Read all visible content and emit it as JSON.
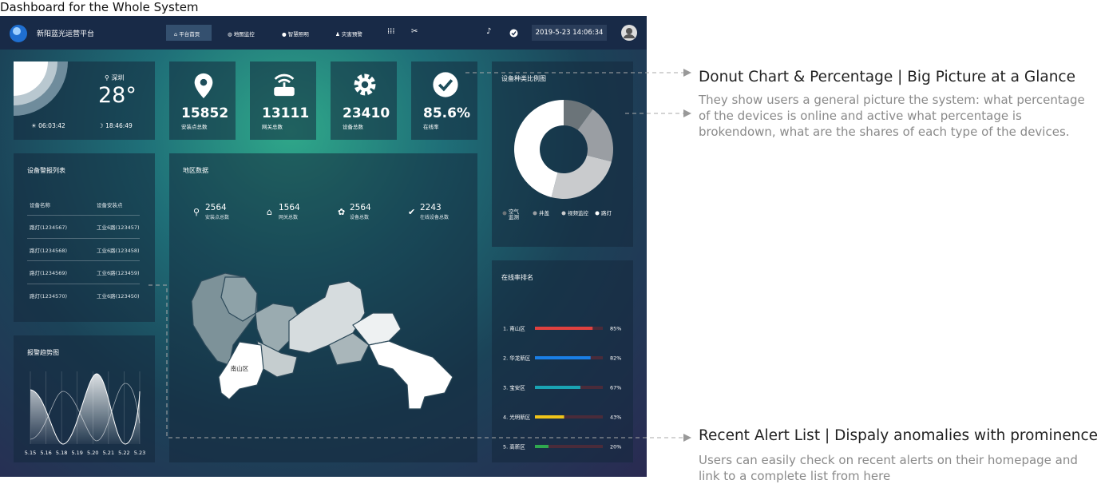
{
  "title": "Dashboard for the Whole System",
  "header": {
    "brand": "新阳蓝光运营平台",
    "nav": [
      "平台首页",
      "地图监控",
      "智慧照明",
      "灾害预警"
    ],
    "datetime": "2019-5-23 14:06:34"
  },
  "weather": {
    "city": "深圳",
    "temperature": "28°",
    "sunrise": "06:03:42",
    "sunset": "18:46:49"
  },
  "stats": [
    {
      "value": "15852",
      "label": "安装点总数"
    },
    {
      "value": "13111",
      "label": "网关总数"
    },
    {
      "value": "23410",
      "label": "设备总数"
    },
    {
      "value": "85.6%",
      "label": "在线率"
    }
  ],
  "alerts": {
    "title": "设备警报列表",
    "columns": [
      "设备名称",
      "设备安装点"
    ],
    "rows": [
      [
        "路灯(1234567)",
        "工业6路(123457)"
      ],
      [
        "路灯(1234568)",
        "工业6路(123458)"
      ],
      [
        "路灯(1234569)",
        "工业6路(123459)"
      ],
      [
        "路灯(1234570)",
        "工业6路(123450)"
      ]
    ]
  },
  "trend": {
    "title": "报警趋势图",
    "categories": [
      "5.15",
      "5.16",
      "5.18",
      "5.19",
      "5.20",
      "5.21",
      "5.22",
      "5.23"
    ]
  },
  "region": {
    "title": "地区数据",
    "stats": [
      {
        "value": "2564",
        "label": "安装点总数"
      },
      {
        "value": "1564",
        "label": "网关总数"
      },
      {
        "value": "2564",
        "label": "设备总数"
      },
      {
        "value": "2243",
        "label": "在线设备总数"
      }
    ],
    "map_label": "南山区"
  },
  "donut": {
    "title": "设备种类比例图",
    "categories": [
      "空气监测",
      "井盖",
      "视频监控",
      "路灯"
    ],
    "values": [
      10,
      19,
      25,
      46
    ],
    "colors": [
      "#6b7479",
      "#9a9ea3",
      "#c9cbcd",
      "#ffffff"
    ]
  },
  "ranking": {
    "title": "在线率排名",
    "categories": [
      "1. 南山区",
      "2. 华龙新区",
      "3. 宝安区",
      "4. 光明新区",
      "5. 高新区"
    ],
    "values": [
      85,
      82,
      67,
      43,
      20
    ],
    "value_labels": [
      "85%",
      "82%",
      "67%",
      "43%",
      "20%"
    ],
    "colors": [
      "#e0413f",
      "#1a7fe6",
      "#1aa3b3",
      "#f0c419",
      "#2fa84f"
    ],
    "xlim": [
      0,
      100
    ]
  },
  "annotations": [
    {
      "heading": "Donut Chart & Percentage | Big Picture at a Glance",
      "text": "They show users a general picture the system: what percentage of the devices is online and active what percentage is brokendown, what are the shares of each type of the devices."
    },
    {
      "heading": "Recent Alert List | Dispaly anomalies with prominence",
      "text": "Users can easily check on recent alerts on their homepage and link to a complete list from here"
    }
  ]
}
